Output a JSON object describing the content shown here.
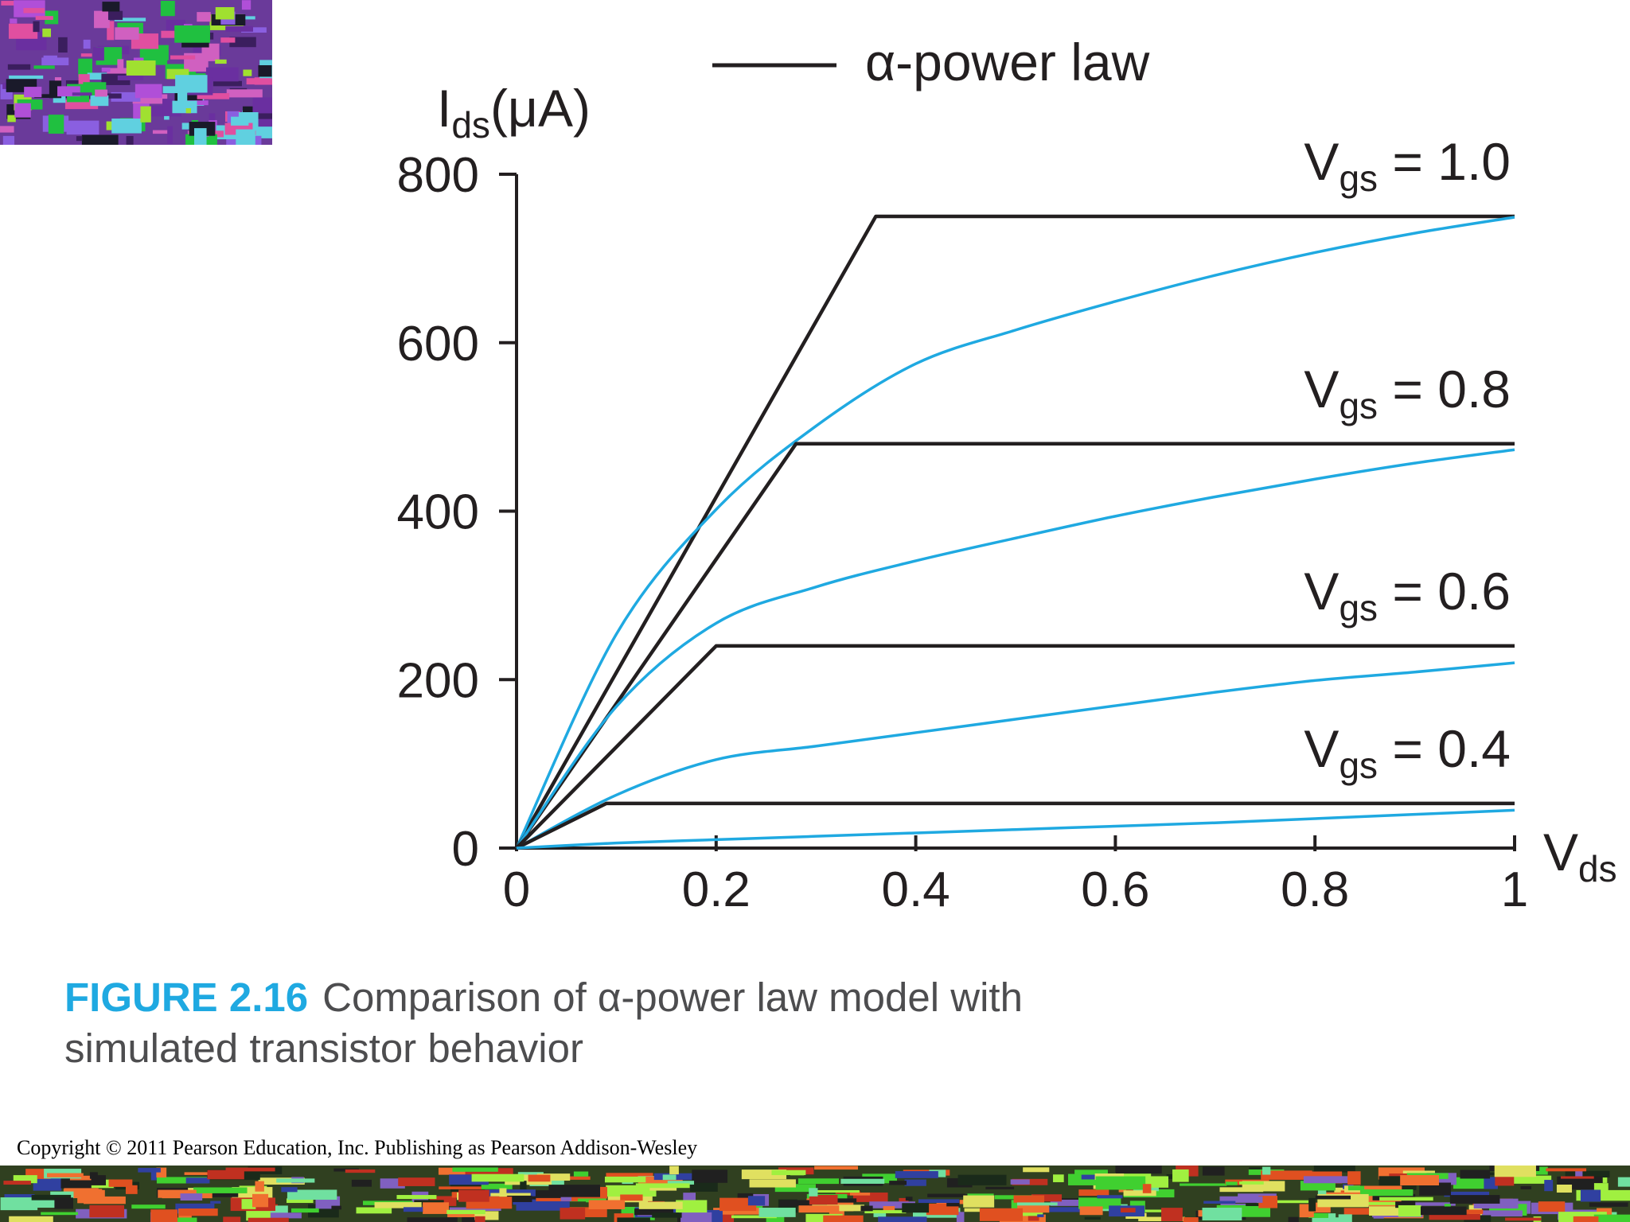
{
  "chart_data": {
    "type": "line",
    "ylabel": {
      "main": "I",
      "sub": "ds",
      "tail": "(μA)"
    },
    "xlabel": {
      "main": "V",
      "sub": "ds"
    },
    "legend_label": "α-power law",
    "model_color": "#231f20",
    "simulated_color": "#1fa9e1",
    "xlim": [
      0,
      1
    ],
    "ylim": [
      0,
      800
    ],
    "xticks": [
      0,
      0.2,
      0.4,
      0.6,
      0.8,
      1
    ],
    "yticks": [
      0,
      200,
      400,
      600,
      800
    ],
    "groups": [
      {
        "label": {
          "main": "V",
          "sub": "gs",
          "tail": " = 1.0"
        },
        "model": {
          "x": [
            0,
            0.36,
            1
          ],
          "values": [
            0,
            750,
            750
          ]
        },
        "simulated": {
          "x": [
            0,
            0.1,
            0.2,
            0.3,
            0.4,
            0.5,
            0.6,
            0.7,
            0.8,
            0.9,
            1
          ],
          "values": [
            0,
            254,
            402,
            501,
            575,
            615,
            649,
            680,
            707,
            730,
            749
          ]
        }
      },
      {
        "label": {
          "main": "V",
          "sub": "gs",
          "tail": " = 0.8"
        },
        "model": {
          "x": [
            0,
            0.28,
            1
          ],
          "values": [
            0,
            480,
            480
          ]
        },
        "simulated": {
          "x": [
            0,
            0.1,
            0.2,
            0.3,
            0.4,
            0.5,
            0.6,
            0.7,
            0.8,
            0.9,
            1
          ],
          "values": [
            0,
            168,
            267,
            310,
            341,
            368,
            394,
            417,
            438,
            457,
            473
          ]
        }
      },
      {
        "label": {
          "main": "V",
          "sub": "gs",
          "tail": " = 0.6"
        },
        "model": {
          "x": [
            0,
            0.2,
            1
          ],
          "values": [
            0,
            240,
            240
          ]
        },
        "simulated": {
          "x": [
            0,
            0.1,
            0.2,
            0.3,
            0.4,
            0.5,
            0.6,
            0.7,
            0.8,
            0.9,
            1
          ],
          "values": [
            0,
            63,
            105,
            121,
            137,
            153,
            169,
            185,
            199,
            209,
            220
          ]
        }
      },
      {
        "label": {
          "main": "V",
          "sub": "gs",
          "tail": " = 0.4"
        },
        "model": {
          "x": [
            0,
            0.09,
            1
          ],
          "values": [
            0,
            53,
            53
          ]
        },
        "simulated": {
          "x": [
            0,
            0.1,
            0.2,
            0.3,
            0.4,
            0.5,
            0.6,
            0.7,
            0.8,
            0.9,
            1
          ],
          "values": [
            0,
            6,
            10,
            14,
            18,
            22,
            26,
            30,
            35,
            40,
            45
          ]
        }
      }
    ]
  },
  "caption": {
    "number": "FIGURE 2.16",
    "text": "Comparison of α-power law model with simulated transistor behavior"
  },
  "copyright": "Copyright © 2011 Pearson Education, Inc. Publishing as Pearson Addison-Wesley"
}
